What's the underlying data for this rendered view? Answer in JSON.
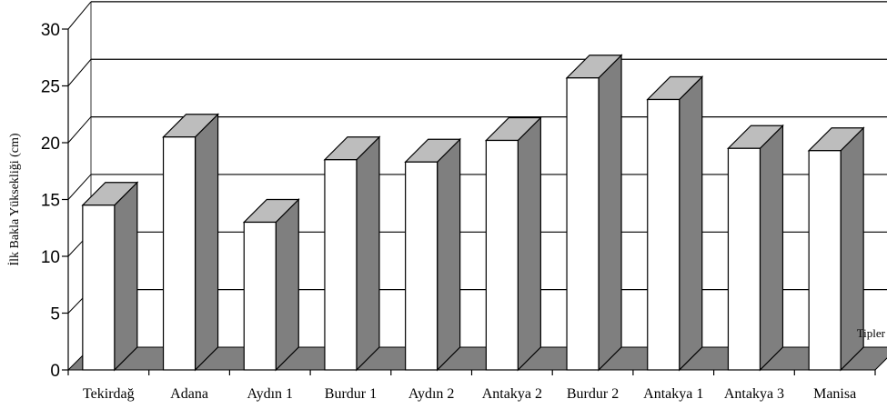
{
  "chart_data": {
    "type": "bar",
    "title": "",
    "xlabel": "Tipler",
    "ylabel": "İlk Bakla Yüksekliği (cm)",
    "ylim": [
      0,
      30
    ],
    "yticks": [
      0,
      5,
      10,
      15,
      20,
      25,
      30
    ],
    "grid": true,
    "style": "3d",
    "colors": {
      "bar_front": "#ffffff",
      "bar_top": "#bdbdbd",
      "bar_side": "#7f7f7f",
      "floor": "#808080",
      "grid": "#000000"
    },
    "categories": [
      "Tekirdağ",
      "Adana",
      "Aydın 1",
      "Burdur 1",
      "Aydın 2",
      "Antakya 2",
      "Burdur 2",
      "Antakya 1",
      "Antakya 3",
      "Manisa"
    ],
    "values": [
      14.5,
      20.5,
      13.0,
      18.5,
      18.3,
      20.2,
      25.7,
      23.8,
      19.5,
      19.3
    ]
  }
}
